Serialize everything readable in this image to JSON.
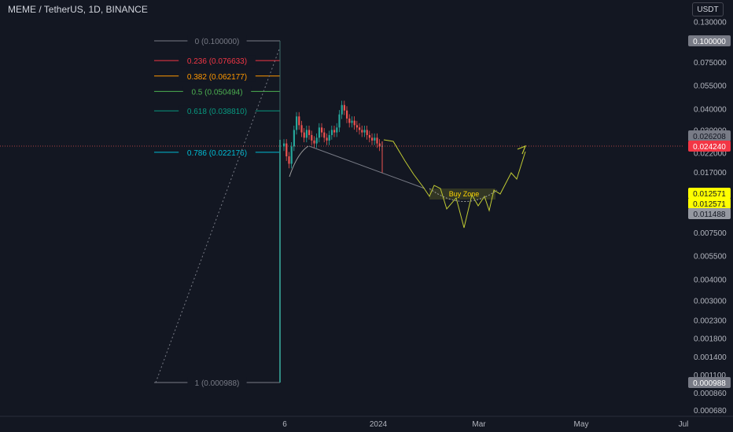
{
  "header": {
    "symbol_title": "MEME / TetherUS, 1D, BINANCE",
    "currency_button": "USDT"
  },
  "colors": {
    "background": "#131722",
    "up_candle": "#26a69a",
    "down_candle": "#ef5350",
    "fib_0": "#787b86",
    "fib_0236": "#f23645",
    "fib_0382": "#ff9800",
    "fib_05": "#4caf50",
    "fib_0618": "#089981",
    "fib_0786": "#00bcd4",
    "fib_1": "#787b86",
    "current_price_label": "#f23645",
    "projection": "#c0ca33",
    "buy_zone_label": "#ffd600"
  },
  "chart_data": {
    "type": "candlestick",
    "title": "MEME / TetherUS, 1D, BINANCE",
    "y_scale": "log",
    "ylim": [
      0.00062,
      0.14
    ],
    "y_ticks": [
      "0.130000",
      "0.075000",
      "0.055000",
      "0.040000",
      "0.030000",
      "0.022000",
      "0.017000",
      "0.007500",
      "0.005500",
      "0.004000",
      "0.003000",
      "0.002300",
      "0.001800",
      "0.001400",
      "0.001100",
      "0.000860",
      "0.000680"
    ],
    "x_ticks": [
      "6",
      "2024",
      "Mar",
      "May",
      "Jul"
    ],
    "fib_levels": [
      {
        "ratio": "0",
        "value": 0.1,
        "label": "0 (0.100000)"
      },
      {
        "ratio": "0.236",
        "value": 0.076633,
        "label": "0.236 (0.076633)"
      },
      {
        "ratio": "0.382",
        "value": 0.062177,
        "label": "0.382 (0.062177)"
      },
      {
        "ratio": "0.5",
        "value": 0.050494,
        "label": "0.5 (0.050494)"
      },
      {
        "ratio": "0.618",
        "value": 0.03881,
        "label": "0.618 (0.038810)"
      },
      {
        "ratio": "0.786",
        "value": 0.022176,
        "label": "0.786 (0.022176)"
      },
      {
        "ratio": "1",
        "value": 0.000988,
        "label": "1 (0.000988)"
      }
    ],
    "price_labels": [
      {
        "text": "0.100000",
        "kind": "fib"
      },
      {
        "text": "0.026208",
        "kind": "gray"
      },
      {
        "text": "0.024240",
        "kind": "current"
      },
      {
        "text": "0.012571",
        "kind": "yellow"
      },
      {
        "text": "0.012571",
        "kind": "yellow"
      },
      {
        "text": "0.011488",
        "kind": "gray"
      },
      {
        "text": "0.000988",
        "kind": "gray"
      }
    ],
    "annotation": "Buy Zone",
    "candles_close_path": [
      0.025,
      0.021,
      0.019,
      0.024,
      0.03,
      0.036,
      0.032,
      0.029,
      0.027,
      0.03,
      0.028,
      0.026,
      0.025,
      0.027,
      0.031,
      0.029,
      0.027,
      0.026,
      0.028,
      0.03,
      0.029,
      0.031,
      0.037,
      0.042,
      0.039,
      0.035,
      0.033,
      0.034,
      0.032,
      0.031,
      0.03,
      0.029,
      0.03,
      0.028,
      0.027,
      0.026,
      0.027,
      0.025,
      0.024,
      0.0242
    ]
  }
}
